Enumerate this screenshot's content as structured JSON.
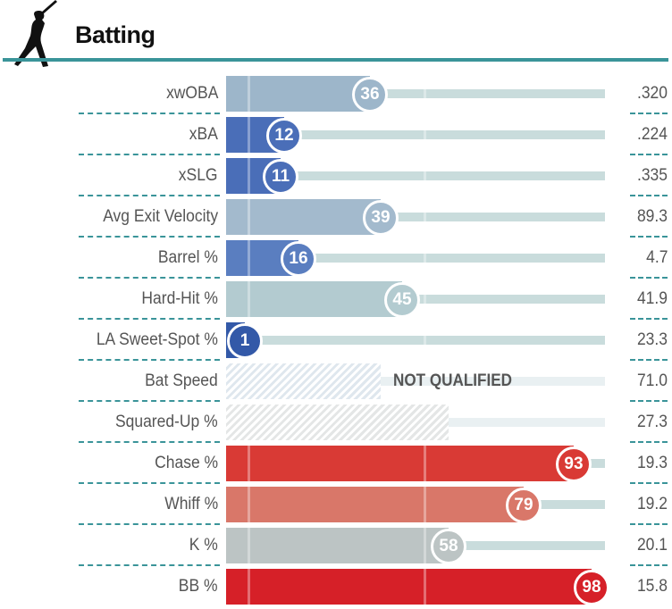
{
  "header": {
    "title": "Batting",
    "icon": "batter-silhouette-icon"
  },
  "colors": {
    "accent": "#3a9499",
    "track": "#c9dcdc",
    "track_nq": "#e9f0f2"
  },
  "chart_data": {
    "type": "bar",
    "xlim": [
      0,
      100
    ],
    "not_qualified_label": "NOT QUALIFIED",
    "rows": [
      {
        "label": "xwOBA",
        "percentile": 36,
        "value": ".320",
        "color": "#9db6ca"
      },
      {
        "label": "xBA",
        "percentile": 12,
        "value": ".224",
        "color": "#4a6eb8"
      },
      {
        "label": "xSLG",
        "percentile": 11,
        "value": ".335",
        "color": "#4a6eb8"
      },
      {
        "label": "Avg Exit Velocity",
        "percentile": 39,
        "value": "89.3",
        "color": "#a3bacd"
      },
      {
        "label": "Barrel %",
        "percentile": 16,
        "value": "4.7",
        "color": "#5a7ec0"
      },
      {
        "label": "Hard-Hit %",
        "percentile": 45,
        "value": "41.9",
        "color": "#b3cbd0"
      },
      {
        "label": "LA Sweet-Spot %",
        "percentile": 1,
        "value": "23.3",
        "color": "#3359a8"
      },
      {
        "label": "Bat Speed",
        "percentile": null,
        "value": "71.0",
        "qualified": false,
        "fill": 44,
        "show_nq": true,
        "color": "#dfe7ee"
      },
      {
        "label": "Squared-Up %",
        "percentile": null,
        "value": "27.3",
        "qualified": false,
        "fill": 63,
        "show_nq": false,
        "color": "#e4e6e6"
      },
      {
        "label": "Chase %",
        "percentile": 93,
        "value": "19.3",
        "color": "#d93a35"
      },
      {
        "label": "Whiff %",
        "percentile": 79,
        "value": "19.2",
        "color": "#d97769"
      },
      {
        "label": "K %",
        "percentile": 58,
        "value": "20.1",
        "color": "#bcc4c4"
      },
      {
        "label": "BB %",
        "percentile": 98,
        "value": "15.8",
        "color": "#d62028"
      }
    ]
  }
}
